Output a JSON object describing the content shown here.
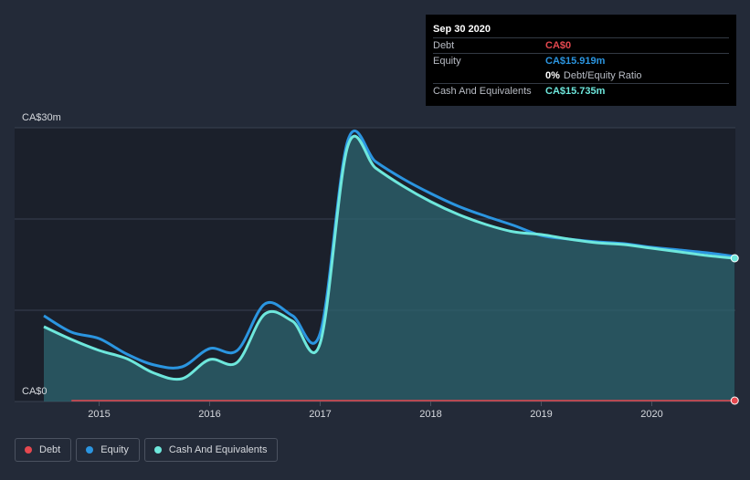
{
  "tooltip": {
    "date": "Sep 30 2020",
    "debt_label": "Debt",
    "debt_value": "CA$0",
    "equity_label": "Equity",
    "equity_value": "CA$15.919m",
    "ratio_value": "0%",
    "ratio_label": "Debt/Equity Ratio",
    "cash_label": "Cash And Equivalents",
    "cash_value": "CA$15.735m"
  },
  "legend": [
    {
      "label": "Debt",
      "color": "#e5484f"
    },
    {
      "label": "Equity",
      "color": "#2b95e0"
    },
    {
      "label": "Cash And Equivalents",
      "color": "#6ee7dc"
    }
  ],
  "colors": {
    "background": "#232a38",
    "plot_background": "#1b202b",
    "debt": "#e5484f",
    "equity": "#2b95e0",
    "cash": "#6ee7dc",
    "cash_fill": "#2d6470"
  },
  "chart_data": {
    "type": "area",
    "ylabel_top": "CA$30m",
    "ylabel_bottom": "CA$0",
    "ylim": [
      0,
      30
    ],
    "xlim": [
      2014.5,
      2020.75
    ],
    "x_ticks": [
      "2015",
      "2016",
      "2017",
      "2018",
      "2019",
      "2020"
    ],
    "grid": true,
    "legend_position": "bottom-left",
    "series": [
      {
        "name": "Debt",
        "x": [
          2014.75,
          2020.75
        ],
        "values": [
          0,
          0
        ]
      },
      {
        "name": "Equity",
        "x": [
          2014.5,
          2014.75,
          2015.0,
          2015.25,
          2015.5,
          2015.75,
          2016.0,
          2016.25,
          2016.5,
          2016.75,
          2017.0,
          2017.25,
          2017.5,
          2017.75,
          2018.0,
          2018.25,
          2018.5,
          2018.75,
          2019.0,
          2019.25,
          2019.5,
          2019.75,
          2020.0,
          2020.25,
          2020.5,
          2020.75
        ],
        "values": [
          9.4,
          7.6,
          6.9,
          5.2,
          4.0,
          3.8,
          5.8,
          5.6,
          10.7,
          9.4,
          7.5,
          28.6,
          26.3,
          24.4,
          22.8,
          21.4,
          20.3,
          19.3,
          18.2,
          17.8,
          17.5,
          17.3,
          16.9,
          16.6,
          16.3,
          15.9
        ]
      },
      {
        "name": "Cash And Equivalents",
        "x": [
          2014.5,
          2014.75,
          2015.0,
          2015.25,
          2015.5,
          2015.75,
          2016.0,
          2016.25,
          2016.5,
          2016.75,
          2017.0,
          2017.25,
          2017.5,
          2017.75,
          2018.0,
          2018.25,
          2018.5,
          2018.75,
          2019.0,
          2019.25,
          2019.5,
          2019.75,
          2020.0,
          2020.25,
          2020.5,
          2020.75
        ],
        "values": [
          8.2,
          6.8,
          5.6,
          4.7,
          3.1,
          2.5,
          4.6,
          4.3,
          9.6,
          8.8,
          6.4,
          28.0,
          25.6,
          23.6,
          21.9,
          20.5,
          19.4,
          18.6,
          18.3,
          17.8,
          17.4,
          17.2,
          16.8,
          16.4,
          16.0,
          15.7
        ]
      }
    ]
  }
}
